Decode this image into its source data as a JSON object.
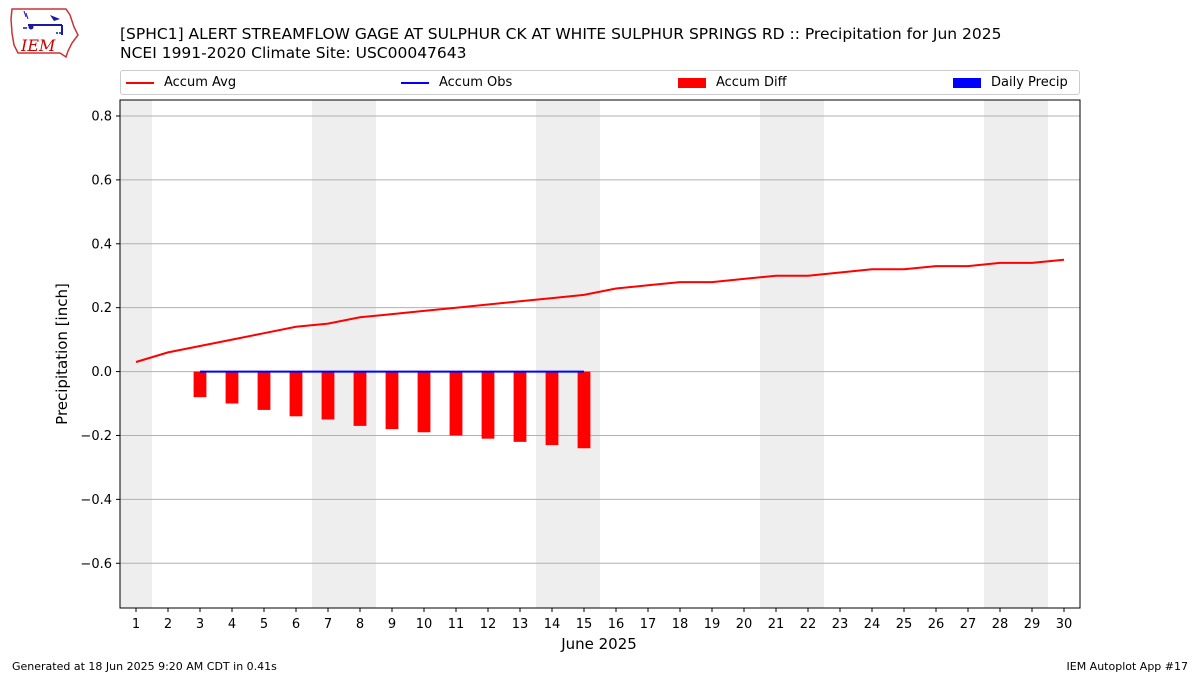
{
  "header": {
    "title_line1": "[SPHC1] ALERT STREAMFLOW GAGE  AT SULPHUR CK AT WHITE SULPHUR SPRINGS RD :: Precipitation for Jun 2025",
    "title_line2": "NCEI 1991-2020 Climate Site: USC00047643"
  },
  "logo": {
    "text": "IEM",
    "color": "#cc0000"
  },
  "footer": {
    "generated": "Generated at 18 Jun 2025 9:20 AM CDT in 0.41s",
    "app": "IEM Autoplot App #17"
  },
  "chart_data": {
    "type": "line",
    "xlabel": "June 2025",
    "ylabel": "Precipitation [inch]",
    "ylim": [
      -0.74,
      0.85
    ],
    "xlim": [
      0.5,
      30.5
    ],
    "yticks": [
      -0.6,
      -0.4,
      -0.2,
      0.0,
      0.2,
      0.4,
      0.6,
      0.8
    ],
    "ytick_labels": [
      "−0.6",
      "−0.4",
      "−0.2",
      "0.0",
      "0.2",
      "0.4",
      "0.6",
      "0.8"
    ],
    "x": [
      1,
      2,
      3,
      4,
      5,
      6,
      7,
      8,
      9,
      10,
      11,
      12,
      13,
      14,
      15,
      16,
      17,
      18,
      19,
      20,
      21,
      22,
      23,
      24,
      25,
      26,
      27,
      28,
      29,
      30
    ],
    "x_labels": [
      "1",
      "2",
      "3",
      "4",
      "5",
      "6",
      "7",
      "8",
      "9",
      "10",
      "11",
      "12",
      "13",
      "14",
      "15",
      "16",
      "17",
      "18",
      "19",
      "20",
      "21",
      "22",
      "23",
      "24",
      "25",
      "26",
      "27",
      "28",
      "29",
      "30"
    ],
    "grid": "horizontal",
    "weekend_shading": [
      [
        0.5,
        1.5
      ],
      [
        6.5,
        8.5
      ],
      [
        13.5,
        15.5
      ],
      [
        20.5,
        22.5
      ],
      [
        27.5,
        29.5
      ]
    ],
    "legend_position": "top",
    "series": [
      {
        "name": "Accum Avg",
        "kind": "line",
        "color": "#ff0000",
        "x": [
          1,
          2,
          3,
          4,
          5,
          6,
          7,
          8,
          9,
          10,
          11,
          12,
          13,
          14,
          15,
          16,
          17,
          18,
          19,
          20,
          21,
          22,
          23,
          24,
          25,
          26,
          27,
          28,
          29,
          30
        ],
        "values": [
          0.03,
          0.06,
          0.08,
          0.1,
          0.12,
          0.14,
          0.15,
          0.17,
          0.18,
          0.19,
          0.2,
          0.21,
          0.22,
          0.23,
          0.24,
          0.26,
          0.27,
          0.28,
          0.28,
          0.29,
          0.3,
          0.3,
          0.31,
          0.32,
          0.32,
          0.33,
          0.33,
          0.34,
          0.34,
          0.35
        ]
      },
      {
        "name": "Accum Obs",
        "kind": "line",
        "color": "#0000ff",
        "x": [
          3,
          4,
          5,
          6,
          7,
          8,
          9,
          10,
          11,
          12,
          13,
          14,
          15
        ],
        "values": [
          0,
          0,
          0,
          0,
          0,
          0,
          0,
          0,
          0,
          0,
          0,
          0,
          0
        ]
      },
      {
        "name": "Accum Diff",
        "kind": "bar",
        "color": "#ff0000",
        "x": [
          3,
          4,
          5,
          6,
          7,
          8,
          9,
          10,
          11,
          12,
          13,
          14,
          15
        ],
        "values": [
          -0.08,
          -0.1,
          -0.12,
          -0.14,
          -0.15,
          -0.17,
          -0.18,
          -0.19,
          -0.2,
          -0.21,
          -0.22,
          -0.23,
          -0.24
        ]
      },
      {
        "name": "Daily Precip",
        "kind": "bar",
        "color": "#0000ff",
        "x": [],
        "values": []
      }
    ]
  }
}
